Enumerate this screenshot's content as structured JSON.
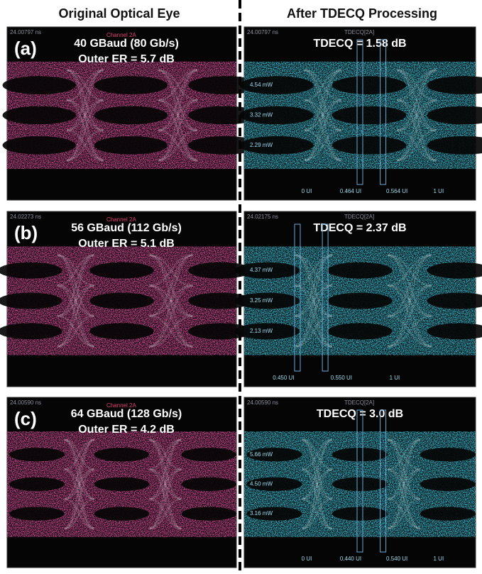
{
  "columns": [
    "Original Optical Eye",
    "After TDECQ Processing"
  ],
  "panels": [
    {
      "label": "(a)",
      "rate": "40 GBaud (80 Gb/s)",
      "er": "Outer ER = 5.7 dB",
      "tdecq": "TDECQ = 1.58 dB",
      "left_scope": {
        "time": "24.00797 ns",
        "channel": "Channel 2A"
      },
      "right_scope": {
        "time": "24.00797 ns",
        "channel": "TDECQ[2A]",
        "levels": [
          "4.54 mW",
          "3.32 mW",
          "2.29 mW"
        ],
        "ui": [
          "0 UI",
          "0.464 UI",
          "0.564 UI",
          "1 UI"
        ]
      }
    },
    {
      "label": "(b)",
      "rate": "56 GBaud (112 Gb/s)",
      "er": "Outer ER = 5.1 dB",
      "tdecq": "TDECQ = 2.37 dB",
      "left_scope": {
        "time": "24.02273 ns",
        "channel": "Channel 2A"
      },
      "right_scope": {
        "time": "24.02175 ns",
        "channel": "TDECQ[2A]",
        "levels": [
          "4.37 mW",
          "3.25 mW",
          "2.13 mW"
        ],
        "ui": [
          "0.450 UI",
          "0.550 UI",
          "1 UI"
        ]
      }
    },
    {
      "label": "(c)",
      "rate": "64 GBaud (128 Gb/s)",
      "er": "Outer ER = 4.2 dB",
      "tdecq": "TDECQ = 3.0 dB",
      "left_scope": {
        "time": "24.00590 ns",
        "channel": "Channel 2A"
      },
      "right_scope": {
        "time": "24.00590 ns",
        "channel": "TDECQ[2A]",
        "levels": [
          "5.66 mW",
          "4.50 mW",
          "3.16 mW"
        ],
        "ui": [
          "0 UI",
          "0.440 UI",
          "0.540 UI",
          "1 UI"
        ]
      }
    }
  ]
}
